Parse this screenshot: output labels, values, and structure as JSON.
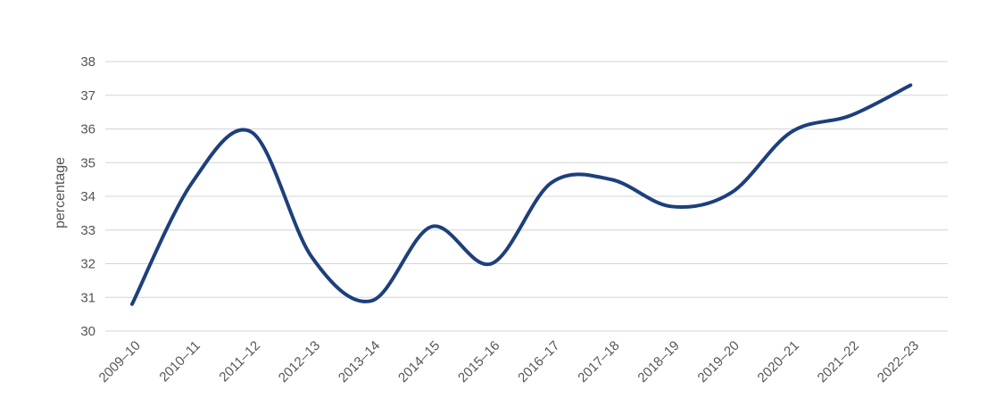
{
  "chart_data": {
    "type": "line",
    "title": "",
    "xlabel": "",
    "ylabel": "percentage",
    "ylim": [
      30,
      38
    ],
    "yticks": [
      30,
      31,
      32,
      33,
      34,
      35,
      36,
      37,
      38
    ],
    "grid": true,
    "legend": "none",
    "line_color": "#1d3f7c",
    "categories": [
      "2009–10",
      "2010–11",
      "2011–12",
      "2012–13",
      "2013–14",
      "2014–15",
      "2015–16",
      "2016–17",
      "2017–18",
      "2018–19",
      "2019–20",
      "2020–21",
      "2021–22",
      "2022–23"
    ],
    "series": [
      {
        "values": [
          30.8,
          34.4,
          35.9,
          32.2,
          30.9,
          33.1,
          32.0,
          34.4,
          34.5,
          33.7,
          34.1,
          35.9,
          36.4,
          37.3
        ]
      }
    ]
  }
}
